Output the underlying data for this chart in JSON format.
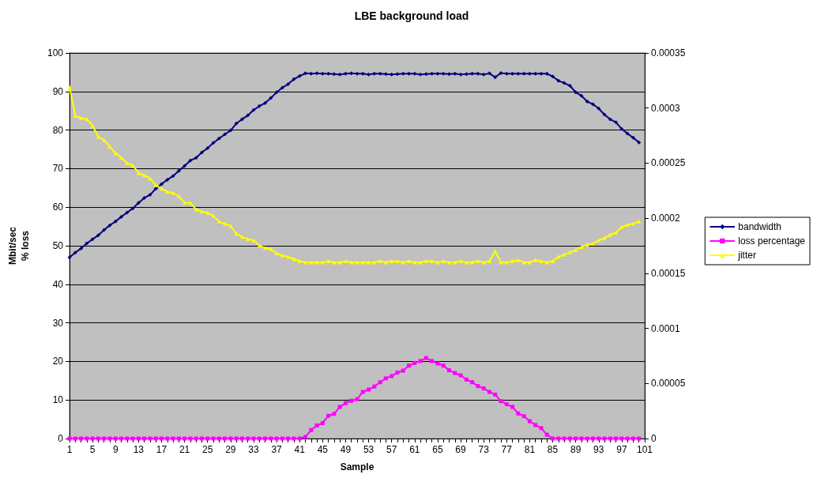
{
  "chart_data": {
    "type": "line",
    "title": "LBE background load",
    "xlabel": "Sample",
    "ylabel": "Mbit/sec\n% loss",
    "categories": [
      "1",
      null,
      null,
      null,
      "5",
      null,
      null,
      null,
      "9",
      null,
      null,
      null,
      "13",
      null,
      null,
      null,
      "17",
      null,
      null,
      null,
      "21",
      null,
      null,
      null,
      "25",
      null,
      null,
      null,
      "29",
      null,
      null,
      null,
      "33",
      null,
      null,
      null,
      "37",
      null,
      null,
      null,
      "41",
      null,
      null,
      null,
      "45",
      null,
      null,
      null,
      "49",
      null,
      null,
      null,
      "53",
      null,
      null,
      null,
      "57",
      null,
      null,
      null,
      "61",
      null,
      null,
      null,
      "65",
      null,
      null,
      null,
      "69",
      null,
      null,
      null,
      "73",
      null,
      null,
      null,
      "77",
      null,
      null,
      null,
      "81",
      null,
      null,
      null,
      "85",
      null,
      null,
      null,
      "89",
      null,
      null,
      null,
      "93",
      null,
      null,
      null,
      "97",
      null,
      null,
      null,
      "101"
    ],
    "series": [
      {
        "name": "bandwidth",
        "color": "#000080",
        "marker": "diamond",
        "values": [
          47,
          48.2,
          49.3,
          50.6,
          51.7,
          52.7,
          54.1,
          55.3,
          56.3,
          57.5,
          58.6,
          59.7,
          61.1,
          62.4,
          63.2,
          64.8,
          66,
          67.1,
          68.1,
          69.4,
          70.7,
          72.1,
          72.8,
          74.2,
          75.3,
          76.7,
          77.8,
          78.9,
          79.9,
          81.7,
          82.8,
          83.8,
          85.2,
          86.2,
          87,
          88.3,
          89.8,
          91,
          91.9,
          93.2,
          94,
          94.7,
          94.6,
          94.7,
          94.6,
          94.6,
          94.5,
          94.4,
          94.6,
          94.7,
          94.6,
          94.6,
          94.4,
          94.6,
          94.6,
          94.5,
          94.4,
          94.5,
          94.6,
          94.6,
          94.6,
          94.4,
          94.5,
          94.6,
          94.6,
          94.6,
          94.5,
          94.6,
          94.4,
          94.5,
          94.6,
          94.6,
          94.4,
          94.7,
          93.7,
          94.8,
          94.6,
          94.6,
          94.6,
          94.6,
          94.6,
          94.6,
          94.6,
          94.6,
          93.9,
          92.8,
          92.2,
          91.5,
          89.8,
          88.9,
          87.4,
          86.7,
          85.6,
          84,
          82.8,
          82,
          80.3,
          79.1,
          78,
          76.8,
          null
        ]
      },
      {
        "name": "loss percentage",
        "color": "#ff00ff",
        "marker": "square",
        "values": [
          0,
          0,
          0,
          0,
          0,
          0,
          0,
          0,
          0,
          0,
          0,
          0,
          0,
          0,
          0,
          0,
          0,
          0,
          0,
          0,
          0,
          0,
          0,
          0,
          0,
          0,
          0,
          0,
          0,
          0,
          0,
          0,
          0,
          0,
          0,
          0,
          0,
          0,
          0,
          0,
          0,
          0.4,
          2.2,
          3.4,
          4,
          5.9,
          6.4,
          8.2,
          9.2,
          9.8,
          10.2,
          12.1,
          12.7,
          13.5,
          14.6,
          15.6,
          16.2,
          17.1,
          17.6,
          18.9,
          19.6,
          20.1,
          20.9,
          20.1,
          19.5,
          18.9,
          17.7,
          17,
          16.4,
          15.3,
          14.6,
          13.6,
          13,
          12.1,
          11.4,
          9.7,
          8.9,
          8.2,
          6.5,
          5.8,
          4.5,
          3.5,
          2.7,
          1,
          0,
          0,
          0,
          0,
          0,
          0,
          0,
          0,
          0,
          0,
          0,
          0,
          0,
          0,
          0,
          0,
          null
        ]
      },
      {
        "name": "jitter",
        "color": "#ffff00",
        "marker": "triangle",
        "axis": "y2",
        "values": [
          0.000319,
          0.000293,
          0.000291,
          0.00029,
          0.000284,
          0.000274,
          0.000271,
          0.000265,
          0.000259,
          0.000255,
          0.00025,
          0.000248,
          0.000241,
          0.000239,
          0.000236,
          0.00023,
          0.000227,
          0.000224,
          0.000223,
          0.00022,
          0.000214,
          0.000214,
          0.000208,
          0.000206,
          0.000205,
          0.000202,
          0.000197,
          0.000195,
          0.000193,
          0.000186,
          0.000183,
          0.000181,
          0.00018,
          0.000175,
          0.000173,
          0.000172,
          0.000168,
          0.000166,
          0.000165,
          0.000163,
          0.000161,
          0.00016,
          0.00016,
          0.00016,
          0.00016,
          0.000161,
          0.00016,
          0.00016,
          0.000161,
          0.00016,
          0.00016,
          0.00016,
          0.00016,
          0.00016,
          0.000161,
          0.00016,
          0.000161,
          0.000161,
          0.00016,
          0.000161,
          0.00016,
          0.00016,
          0.000161,
          0.000161,
          0.00016,
          0.000161,
          0.00016,
          0.00016,
          0.000161,
          0.00016,
          0.00016,
          0.000161,
          0.00016,
          0.000161,
          0.00017,
          0.00016,
          0.00016,
          0.000161,
          0.000162,
          0.00016,
          0.00016,
          0.000162,
          0.000161,
          0.00016,
          0.000161,
          0.000165,
          0.000167,
          0.000169,
          0.000171,
          0.000174,
          0.000176,
          0.000177,
          0.00018,
          0.000182,
          0.000185,
          0.000187,
          0.000192,
          0.000194,
          0.000195,
          0.000197,
          null
        ]
      }
    ],
    "ylim": [
      0,
      100
    ],
    "yticks": [
      0,
      10,
      20,
      30,
      40,
      50,
      60,
      70,
      80,
      90,
      100
    ],
    "y2lim": [
      0,
      0.00035
    ],
    "y2ticks": [
      0,
      {
        "value": 5e-05,
        "label": "0.00005"
      },
      0.0001,
      0.00015,
      0.0002,
      0.00025,
      0.0003,
      0.00035
    ],
    "grid": "y",
    "legend": "right",
    "line_style": "solid"
  }
}
